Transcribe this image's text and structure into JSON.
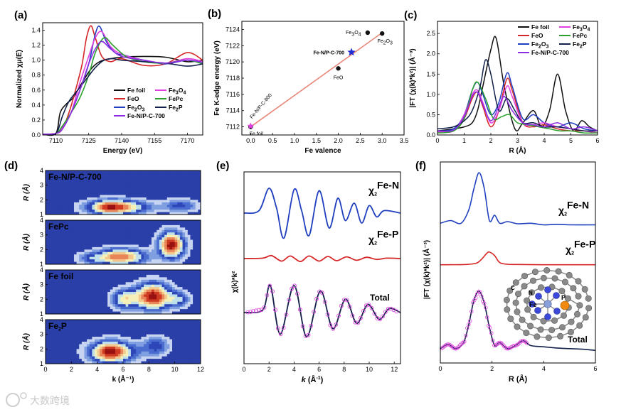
{
  "watermark": "大数跨境",
  "chart_data": [
    {
      "panel": "(a)",
      "type": "line",
      "xlabel": "Energy (eV)",
      "ylabel": "Normalized χμ(E)",
      "xlim": [
        7104,
        7177
      ],
      "ylim": [
        0,
        1.5
      ],
      "xticks": [
        "7110",
        "7125",
        "7140",
        "7155",
        "7170"
      ],
      "yticks": [
        "0.0",
        "0.2",
        "0.4",
        "0.6",
        "0.8",
        "1.0",
        "1.2",
        "1.4"
      ],
      "series": [
        {
          "name": "Fe foil",
          "color": "#111111",
          "x": [
            7104,
            7110,
            7112,
            7115,
            7118,
            7122,
            7126,
            7130,
            7135,
            7140,
            7150,
            7160,
            7170,
            7177
          ],
          "y": [
            0.01,
            0.02,
            0.3,
            0.42,
            0.5,
            0.7,
            0.88,
            0.98,
            1.02,
            1.04,
            1.05,
            1.04,
            0.98,
            1.0
          ]
        },
        {
          "name": "FeO",
          "color": "#d62728",
          "x": [
            7104,
            7110,
            7113,
            7116,
            7119,
            7122,
            7124,
            7126,
            7128,
            7131,
            7135,
            7140,
            7150,
            7160,
            7170,
            7177
          ],
          "y": [
            0.01,
            0.02,
            0.08,
            0.3,
            0.6,
            0.95,
            1.3,
            1.46,
            1.3,
            1.05,
            0.98,
            1.02,
            0.93,
            0.95,
            1.1,
            1.0
          ]
        },
        {
          "name": "Fe2O3",
          "color": "#1f3fbf",
          "x": [
            7104,
            7110,
            7113,
            7117,
            7121,
            7125,
            7128,
            7130,
            7133,
            7137,
            7142,
            7150,
            7160,
            7170,
            7177
          ],
          "y": [
            0.01,
            0.02,
            0.1,
            0.3,
            0.6,
            0.95,
            1.35,
            1.45,
            1.25,
            1.1,
            1.06,
            1.0,
            0.95,
            1.0,
            0.95
          ]
        },
        {
          "name": "Fe3O4",
          "color": "#e040e0",
          "x": [
            7104,
            7110,
            7113,
            7117,
            7121,
            7125,
            7128,
            7131,
            7135,
            7140,
            7150,
            7160,
            7170,
            7177
          ],
          "y": [
            0.01,
            0.02,
            0.1,
            0.3,
            0.7,
            1.05,
            1.3,
            1.38,
            1.18,
            1.08,
            1.0,
            0.96,
            1.02,
            0.98
          ]
        },
        {
          "name": "FePc",
          "color": "#2ca02c",
          "x": [
            7104,
            7110,
            7113,
            7117,
            7121,
            7125,
            7128,
            7132,
            7136,
            7142,
            7150,
            7160,
            7170,
            7177
          ],
          "y": [
            0.01,
            0.02,
            0.12,
            0.3,
            0.5,
            0.8,
            1.1,
            1.3,
            1.2,
            1.05,
            0.98,
            0.96,
            1.0,
            0.95
          ]
        },
        {
          "name": "Fe2P",
          "color": "#12204a",
          "x": [
            7104,
            7110,
            7113,
            7116,
            7120,
            7124,
            7128,
            7132,
            7136,
            7140,
            7150,
            7160,
            7170,
            7177
          ],
          "y": [
            0.01,
            0.02,
            0.25,
            0.45,
            0.6,
            0.75,
            0.9,
            1.0,
            1.02,
            1.0,
            0.98,
            0.96,
            0.92,
            0.95
          ]
        },
        {
          "name": "Fe-N/P-C-700",
          "color": "#8b2be2",
          "x": [
            7104,
            7110,
            7113,
            7117,
            7121,
            7125,
            7128,
            7131,
            7135,
            7140,
            7150,
            7160,
            7170,
            7177
          ],
          "y": [
            0.01,
            0.02,
            0.08,
            0.3,
            0.6,
            0.95,
            1.15,
            1.25,
            1.15,
            1.05,
            1.0,
            0.96,
            1.0,
            0.97
          ]
        }
      ]
    },
    {
      "panel": "(b)",
      "type": "scatter",
      "xlabel": "Fe valence",
      "ylabel": "Fe K-edge energy (eV)",
      "xlim": [
        -0.2,
        3.5
      ],
      "ylim": [
        7111,
        7125
      ],
      "xticks": [
        "0.0",
        "0.5",
        "1.0",
        "1.5",
        "2.0",
        "2.5",
        "3.0",
        "3.5"
      ],
      "yticks": [
        "7112",
        "7114",
        "7116",
        "7118",
        "7120",
        "7122",
        "7124"
      ],
      "points": [
        {
          "label": "Fe foil",
          "x": 0,
          "y": 7112.0
        },
        {
          "label": "FeO",
          "x": 2,
          "y": 7119.2
        },
        {
          "label": "Fe3O4",
          "x": 2.67,
          "y": 7123.6
        },
        {
          "label": "Fe2O3",
          "x": 3,
          "y": 7123.5
        },
        {
          "label": "Fe-N/P-C-700",
          "x": 2.3,
          "y": 7121.2
        },
        {
          "label": "Fe-N/P-C-800",
          "x": 0,
          "y": 7112.1
        }
      ],
      "fit": {
        "x": [
          0,
          3
        ],
        "y": [
          7112.0,
          7123.6
        ]
      }
    },
    {
      "panel": "(c)",
      "type": "line",
      "xlabel": "R (Å)",
      "ylabel": "|FT (χ(k)*k²)| (Å⁻³)",
      "xlim": [
        0,
        6
      ],
      "ylim": [
        0,
        2.8
      ],
      "xticks": [
        "0",
        "1",
        "2",
        "3",
        "4",
        "5",
        "6"
      ],
      "yticks": [
        "0.0",
        "0.5",
        "1.0",
        "1.5",
        "2.0",
        "2.5"
      ],
      "series": [
        {
          "name": "Fe foil",
          "color": "#111111",
          "x": [
            0,
            0.6,
            1.0,
            1.3,
            1.5,
            1.7,
            2.0,
            2.2,
            2.5,
            2.9,
            3.2,
            3.6,
            3.9,
            4.2,
            4.5,
            4.8,
            5.1,
            5.4,
            5.7,
            6.0
          ],
          "y": [
            0.1,
            0.15,
            0.2,
            0.3,
            0.6,
            1.2,
            2.1,
            2.38,
            1.2,
            0.15,
            0.3,
            0.6,
            0.2,
            0.6,
            1.5,
            0.6,
            0.1,
            0.35,
            0.2,
            0.1
          ]
        },
        {
          "name": "FeO",
          "color": "#d62728",
          "x": [
            0,
            0.6,
            1.0,
            1.3,
            1.5,
            1.7,
            2.0,
            2.3,
            2.6,
            2.8,
            3.2,
            3.6,
            4.0,
            4.5,
            5.0,
            5.5,
            6.0
          ],
          "y": [
            0.08,
            0.1,
            0.4,
            0.9,
            1.05,
            0.7,
            0.2,
            0.6,
            1.38,
            1.1,
            0.3,
            0.2,
            0.25,
            0.15,
            0.1,
            0.1,
            0.05
          ]
        },
        {
          "name": "Fe2O3",
          "color": "#1f3fbf",
          "x": [
            0,
            0.6,
            1.0,
            1.3,
            1.5,
            1.7,
            2.0,
            2.3,
            2.6,
            2.8,
            3.2,
            3.6,
            4.0,
            4.5,
            5.0,
            5.5,
            6.0
          ],
          "y": [
            0.1,
            0.15,
            0.5,
            1.1,
            1.3,
            1.0,
            0.5,
            0.8,
            1.52,
            1.2,
            0.4,
            0.5,
            0.3,
            0.2,
            0.3,
            0.15,
            0.1
          ]
        },
        {
          "name": "Fe3O4",
          "color": "#e040e0",
          "x": [
            0,
            0.6,
            1.0,
            1.3,
            1.5,
            1.7,
            2.0,
            2.3,
            2.6,
            2.8,
            3.2,
            3.6,
            4.0,
            4.5,
            5.0,
            5.5,
            6.0
          ],
          "y": [
            0.08,
            0.1,
            0.5,
            1.0,
            1.1,
            0.8,
            0.3,
            0.6,
            1.2,
            0.95,
            0.3,
            0.25,
            0.3,
            0.2,
            0.15,
            0.1,
            0.05
          ]
        },
        {
          "name": "FePc",
          "color": "#2ca02c",
          "x": [
            0,
            0.6,
            1.0,
            1.3,
            1.5,
            1.8,
            2.1,
            2.4,
            2.7,
            3.0,
            3.4,
            3.8,
            4.2,
            4.6,
            5.0,
            5.5,
            6.0
          ],
          "y": [
            0.05,
            0.1,
            0.4,
            1.1,
            1.3,
            0.9,
            0.4,
            0.45,
            0.5,
            0.3,
            0.25,
            0.2,
            0.15,
            0.1,
            0.1,
            0.05,
            0.05
          ]
        },
        {
          "name": "Fe2P",
          "color": "#12204a",
          "x": [
            0,
            0.6,
            1.0,
            1.3,
            1.6,
            1.8,
            2.0,
            2.3,
            2.6,
            2.9,
            3.2,
            3.6,
            4.0,
            4.5,
            5.0,
            5.5,
            6.0
          ],
          "y": [
            0.15,
            0.2,
            0.35,
            0.6,
            1.2,
            1.85,
            1.5,
            0.6,
            0.9,
            0.6,
            0.3,
            0.3,
            0.2,
            0.2,
            0.15,
            0.1,
            0.1
          ]
        },
        {
          "name": "Fe-N/P-C-700",
          "color": "#8b2be2",
          "x": [
            0,
            0.6,
            1.0,
            1.3,
            1.5,
            1.7,
            2.0,
            2.3,
            2.5,
            2.8,
            3.2,
            3.6,
            4.0,
            4.5,
            5.0,
            5.5,
            6.0
          ],
          "y": [
            0.1,
            0.12,
            0.45,
            0.95,
            1.05,
            0.75,
            0.35,
            0.7,
            0.95,
            0.6,
            0.3,
            0.25,
            0.2,
            0.3,
            0.15,
            0.2,
            0.1
          ]
        }
      ]
    },
    {
      "panel": "(d)",
      "type": "heatmap",
      "xlabel": "k (Å⁻¹)",
      "ylabel": "R (Å)",
      "xlim": [
        0,
        12
      ],
      "ylim": [
        1,
        4
      ],
      "xticks": [
        "0",
        "2",
        "4",
        "6",
        "8",
        "10",
        "12"
      ],
      "yticks": [
        "1",
        "2",
        "3",
        "4"
      ],
      "subpanels": [
        {
          "name": "Fe-N/P-C-700",
          "peaks": [
            {
              "k": 5.5,
              "R": 1.5,
              "amp": 1.0,
              "sk": 2.0,
              "sR": 0.45
            },
            {
              "k": 10.5,
              "R": 1.6,
              "amp": 0.35,
              "sk": 1.2,
              "sR": 0.4
            }
          ]
        },
        {
          "name": "FePc",
          "peaks": [
            {
              "k": 6.0,
              "R": 1.5,
              "amp": 0.9,
              "sk": 1.6,
              "sR": 0.5
            },
            {
              "k": 9.8,
              "R": 2.3,
              "amp": 1.0,
              "sk": 0.9,
              "sR": 0.8
            },
            {
              "k": 3.5,
              "R": 1.4,
              "amp": 0.3,
              "sk": 1.0,
              "sR": 0.4
            }
          ]
        },
        {
          "name": "Fe foil",
          "peaks": [
            {
              "k": 8.2,
              "R": 2.2,
              "amp": 1.0,
              "sk": 1.3,
              "sR": 0.8
            },
            {
              "k": 6.2,
              "R": 2.0,
              "amp": 0.6,
              "sk": 0.9,
              "sR": 0.6
            },
            {
              "k": 10.3,
              "R": 2.0,
              "amp": 0.4,
              "sk": 0.8,
              "sR": 0.5
            }
          ]
        },
        {
          "name": "Fe2P",
          "peaks": [
            {
              "k": 5.2,
              "R": 1.8,
              "amp": 1.0,
              "sk": 1.6,
              "sR": 0.65
            },
            {
              "k": 8.5,
              "R": 2.2,
              "amp": 0.3,
              "sk": 1.0,
              "sR": 0.6
            }
          ]
        }
      ]
    },
    {
      "panel": "(e)",
      "type": "line",
      "xlabel": "k (Å⁻¹)",
      "ylabel": "χ(k)*k²",
      "xlim": [
        0,
        12.5
      ],
      "xticks": [
        "0",
        "2",
        "4",
        "6",
        "8",
        "10",
        "12"
      ],
      "series": [
        {
          "name": "χ2Fe-N",
          "color": "#1f3fbf",
          "x": [
            0,
            1.2,
            2,
            2.6,
            3.2,
            4,
            4.6,
            5.2,
            6,
            6.8,
            7.5,
            8.1,
            8.8,
            9.4,
            10,
            10.6,
            11.2,
            12.5
          ],
          "y": [
            0,
            0.1,
            1,
            0.2,
            -1,
            0.95,
            0.1,
            -0.9,
            0.9,
            -0.6,
            0.6,
            -0.3,
            0.4,
            -0.4,
            0.3,
            -0.15,
            0.1,
            0
          ]
        },
        {
          "name": "χ2Fe-P",
          "color": "#d62728",
          "x": [
            0,
            1.5,
            2.2,
            3,
            3.7,
            4.5,
            5.2,
            6,
            6.7,
            7.4,
            8.2,
            9,
            9.8,
            10.6,
            11.4,
            12.5
          ],
          "y": [
            0,
            0.05,
            0.35,
            -0.3,
            0.3,
            -0.35,
            0.3,
            -0.3,
            0.25,
            -0.25,
            0.2,
            -0.2,
            0.15,
            -0.1,
            0.05,
            0
          ]
        },
        {
          "name": "Total",
          "color": "#12204a",
          "x": [
            0,
            1.5,
            2.1,
            2.9,
            4.0,
            5.0,
            6.1,
            7.1,
            8.1,
            9.0,
            9.9,
            10.8,
            11.6,
            12.5
          ],
          "y": [
            0,
            0.1,
            1,
            -0.8,
            1.0,
            -0.9,
            0.8,
            -0.6,
            0.5,
            -0.4,
            0.3,
            -0.25,
            0.15,
            0
          ]
        }
      ]
    },
    {
      "panel": "(f)",
      "type": "line",
      "xlabel": "R (Å)",
      "ylabel": "|FT (χ(k)*k²)| (Å⁻³)",
      "xlim": [
        0,
        6
      ],
      "xticks": [
        "0",
        "2",
        "4",
        "6"
      ],
      "series": [
        {
          "name": "χ2Fe-N",
          "color": "#1f3fbf",
          "x": [
            0,
            0.4,
            0.8,
            1.1,
            1.3,
            1.5,
            1.7,
            1.9,
            2.1,
            2.3,
            2.6,
            3,
            3.5,
            4,
            4.5,
            5,
            6
          ],
          "y": [
            0.05,
            0.1,
            0.05,
            0.3,
            0.7,
            1.0,
            0.7,
            0.1,
            0.2,
            0.05,
            0.08,
            0.04,
            0.05,
            0.02,
            0.03,
            0.02,
            0.02
          ]
        },
        {
          "name": "χ2Fe-P",
          "color": "#d62728",
          "x": [
            0,
            1.0,
            1.4,
            1.6,
            1.8,
            1.9,
            2.1,
            2.3,
            2.6,
            3,
            4,
            5,
            6
          ],
          "y": [
            0.01,
            0.02,
            0.08,
            0.25,
            0.5,
            0.55,
            0.4,
            0.1,
            0.03,
            0.02,
            0.01,
            0.01,
            0.01
          ]
        },
        {
          "name": "Total",
          "color": "#12204a",
          "x": [
            0,
            0.3,
            0.6,
            0.9,
            1.1,
            1.3,
            1.5,
            1.7,
            1.9,
            2.1,
            2.3,
            2.6,
            2.9,
            3.2,
            3.5,
            4,
            4.5,
            5,
            5.5,
            6
          ],
          "y": [
            0.05,
            0.12,
            0.05,
            0.15,
            0.45,
            0.85,
            1.0,
            0.8,
            0.4,
            0.1,
            0.15,
            0.05,
            0.1,
            0.18,
            0.1,
            0.08,
            0.06,
            0.05,
            0.04,
            0.02
          ]
        }
      ],
      "inset_atoms": [
        "C",
        "N",
        "Fe",
        "P"
      ]
    }
  ]
}
